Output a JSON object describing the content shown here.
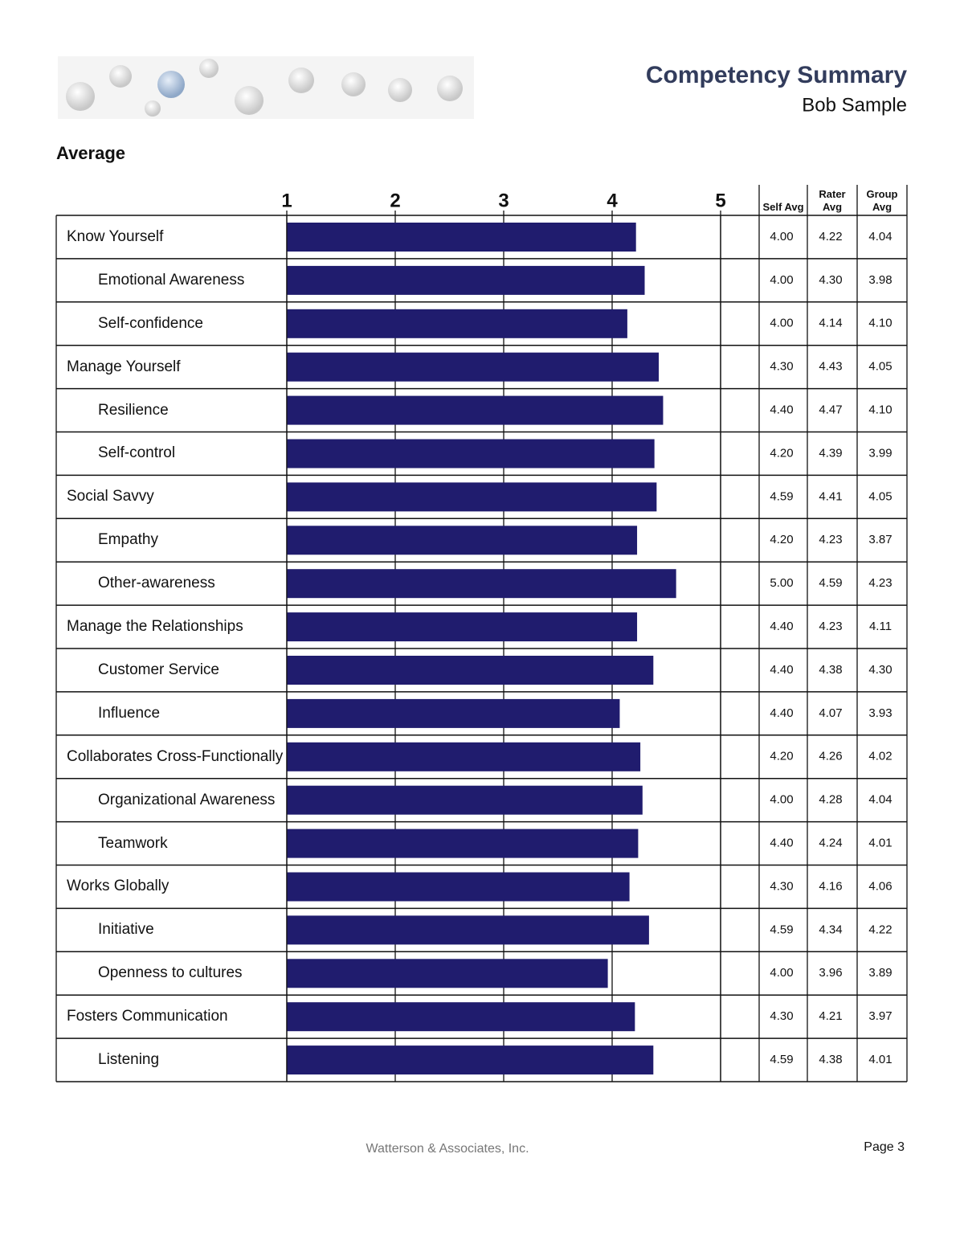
{
  "header": {
    "title": "Competency Summary",
    "subtitle": "Bob Sample"
  },
  "section_title": "Average",
  "chart_data": {
    "type": "bar",
    "orientation": "horizontal",
    "categories": [
      "Know Yourself",
      "Emotional Awareness",
      "Self-confidence",
      "Manage Yourself",
      "Resilience",
      "Self-control",
      "Social Savvy",
      "Empathy",
      "Other-awareness",
      "Manage the Relationships",
      "Customer Service",
      "Influence",
      "Collaborates Cross-Functionally",
      "Organizational Awareness",
      "Teamwork",
      "Works Globally",
      "Initiative",
      "Openness to cultures",
      "Fosters Communication",
      "Listening"
    ],
    "levels": [
      0,
      1,
      1,
      0,
      1,
      1,
      0,
      1,
      1,
      0,
      1,
      1,
      0,
      1,
      1,
      0,
      1,
      1,
      0,
      1
    ],
    "values": [
      4.22,
      4.3,
      4.14,
      4.43,
      4.47,
      4.39,
      4.41,
      4.23,
      4.59,
      4.23,
      4.38,
      4.07,
      4.26,
      4.28,
      4.24,
      4.16,
      4.34,
      3.96,
      4.21,
      4.38
    ],
    "value_labels": [
      "4.22",
      "4.30",
      "4.14",
      "4.43",
      "4.47",
      "4.39",
      "4.41",
      "4.23",
      "4.59",
      "4.23",
      "4.38",
      "4.07",
      "4.26",
      "4.28",
      "4.24",
      "4.16",
      "4.34",
      "3.96",
      "4.21",
      "4.38"
    ],
    "xlim": [
      1,
      5
    ],
    "xticks": [
      1,
      2,
      3,
      4,
      5
    ],
    "grid": true,
    "color": "#201c6e"
  },
  "table": {
    "columns": [
      "Self Avg",
      "Rater Avg",
      "Group Avg"
    ],
    "self": [
      "4.00",
      "4.00",
      "4.00",
      "4.30",
      "4.40",
      "4.20",
      "4.59",
      "4.20",
      "5.00",
      "4.40",
      "4.40",
      "4.40",
      "4.20",
      "4.00",
      "4.40",
      "4.30",
      "4.59",
      "4.00",
      "4.30",
      "4.59"
    ],
    "group": [
      "4.04",
      "3.98",
      "4.10",
      "4.05",
      "4.10",
      "3.99",
      "4.05",
      "3.87",
      "4.23",
      "4.11",
      "4.30",
      "3.93",
      "4.02",
      "4.04",
      "4.01",
      "4.06",
      "4.22",
      "3.89",
      "3.97",
      "4.01"
    ]
  },
  "footer": {
    "company": "Watterson & Associates, Inc.",
    "page": "Page 3"
  }
}
